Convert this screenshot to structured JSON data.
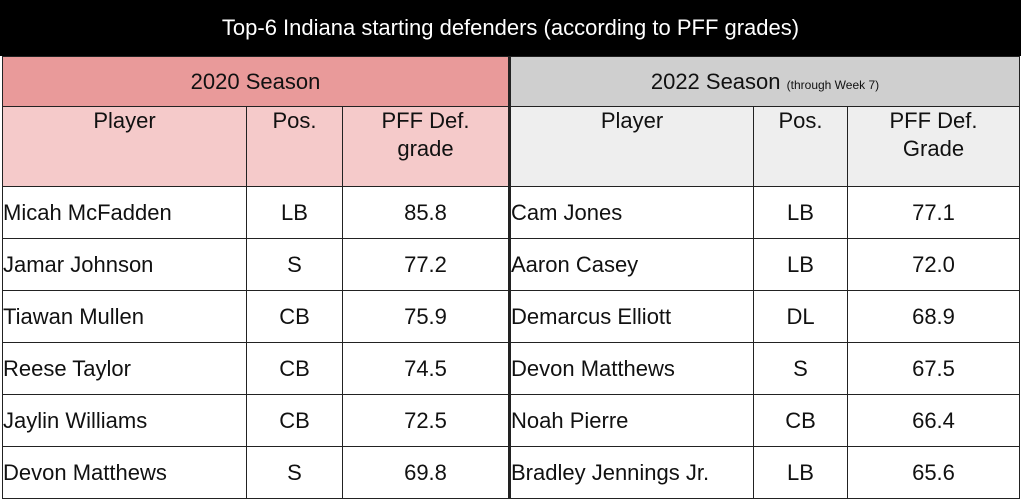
{
  "title": "Top-6 Indiana starting defenders (according to PFF grades)",
  "seasons": [
    {
      "label": "2020 Season",
      "note": "",
      "columns": [
        "Player",
        "Pos.",
        "PFF Def. grade"
      ],
      "rows": [
        {
          "player": "Micah McFadden",
          "pos": "LB",
          "grade": "85.8"
        },
        {
          "player": "Jamar Johnson",
          "pos": "S",
          "grade": "77.2"
        },
        {
          "player": "Tiawan Mullen",
          "pos": "CB",
          "grade": "75.9"
        },
        {
          "player": "Reese Taylor",
          "pos": "CB",
          "grade": "74.5"
        },
        {
          "player": "Jaylin Williams",
          "pos": "CB",
          "grade": "72.5"
        },
        {
          "player": "Devon Matthews",
          "pos": "S",
          "grade": "69.8"
        }
      ]
    },
    {
      "label": "2022 Season",
      "note": "(through Week 7)",
      "columns": [
        "Player",
        "Pos.",
        "PFF Def. Grade"
      ],
      "rows": [
        {
          "player": "Cam Jones",
          "pos": "LB",
          "grade": "77.1"
        },
        {
          "player": "Aaron Casey",
          "pos": "LB",
          "grade": "72.0"
        },
        {
          "player": "Demarcus Elliott",
          "pos": "DL",
          "grade": "68.9"
        },
        {
          "player": "Devon Matthews",
          "pos": "S",
          "grade": "67.5"
        },
        {
          "player": "Noah Pierre",
          "pos": "CB",
          "grade": "66.4"
        },
        {
          "player": "Bradley Jennings Jr.",
          "pos": "LB",
          "grade": "65.6"
        }
      ]
    }
  ],
  "colors": {
    "title_bg": "#000000",
    "season_2020_bg": "#e99a9a",
    "header_2020_bg": "#f5caca",
    "season_2022_bg": "#cfcfcf",
    "header_2022_bg": "#eeeeee"
  }
}
